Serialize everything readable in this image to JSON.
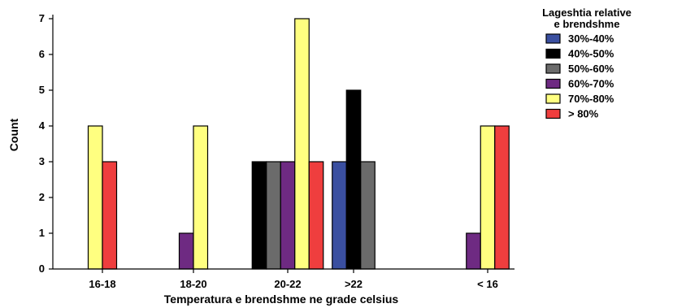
{
  "chart_data": {
    "type": "bar",
    "categories": [
      "16-18",
      "18-20",
      "20-22",
      ">22",
      "< 16"
    ],
    "xlabel": "Temperatura e brendshme ne grade celsius",
    "ylabel": "Count",
    "ylim": [
      0,
      7
    ],
    "yticks": [
      0,
      1,
      2,
      3,
      4,
      5,
      6,
      7
    ],
    "grid": false,
    "legend": {
      "title_lines": [
        "Lageshtia relative",
        "e brendshme"
      ],
      "placement": "right"
    },
    "series": [
      {
        "name": "30%-40%",
        "color": "#3a4fa0",
        "values": [
          0,
          0,
          0,
          3,
          0
        ]
      },
      {
        "name": "40%-50%",
        "color": "#000000",
        "values": [
          0,
          0,
          3,
          5,
          0
        ]
      },
      {
        "name": "50%-60%",
        "color": "#6b6b6b",
        "values": [
          0,
          0,
          3,
          3,
          0
        ]
      },
      {
        "name": "60%-70%",
        "color": "#6e2a82",
        "values": [
          0,
          1,
          3,
          0,
          1
        ]
      },
      {
        "name": "70%-80%",
        "color": "#ffff80",
        "values": [
          4,
          4,
          7,
          0,
          4
        ]
      },
      {
        "name": "> 80%",
        "color": "#ef3e3e",
        "values": [
          3,
          0,
          3,
          0,
          4
        ]
      }
    ]
  }
}
